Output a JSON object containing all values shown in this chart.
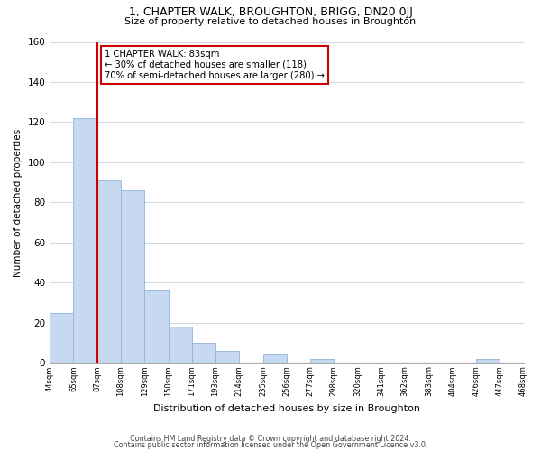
{
  "title": "1, CHAPTER WALK, BROUGHTON, BRIGG, DN20 0JJ",
  "subtitle": "Size of property relative to detached houses in Broughton",
  "xlabel": "Distribution of detached houses by size in Broughton",
  "ylabel": "Number of detached properties",
  "bar_values": [
    25,
    122,
    91,
    86,
    36,
    18,
    10,
    6,
    0,
    4,
    0,
    2,
    0,
    0,
    0,
    0,
    0,
    0,
    2,
    0
  ],
  "bin_labels": [
    "44sqm",
    "65sqm",
    "87sqm",
    "108sqm",
    "129sqm",
    "150sqm",
    "171sqm",
    "193sqm",
    "214sqm",
    "235sqm",
    "256sqm",
    "277sqm",
    "298sqm",
    "320sqm",
    "341sqm",
    "362sqm",
    "383sqm",
    "404sqm",
    "426sqm",
    "447sqm",
    "468sqm"
  ],
  "bar_color": "#c6d9f0",
  "bar_edge_color": "#8db4d8",
  "subject_line_idx": 2,
  "subject_line_color": "#cc0000",
  "ylim": [
    0,
    160
  ],
  "yticks": [
    0,
    20,
    40,
    60,
    80,
    100,
    120,
    140,
    160
  ],
  "annotation_line1": "1 CHAPTER WALK: 83sqm",
  "annotation_line2": "← 30% of detached houses are smaller (118)",
  "annotation_line3": "70% of semi-detached houses are larger (280) →",
  "footer_line1": "Contains HM Land Registry data © Crown copyright and database right 2024.",
  "footer_line2": "Contains public sector information licensed under the Open Government Licence v3.0.",
  "background_color": "#ffffff",
  "grid_color": "#d0d8e8"
}
